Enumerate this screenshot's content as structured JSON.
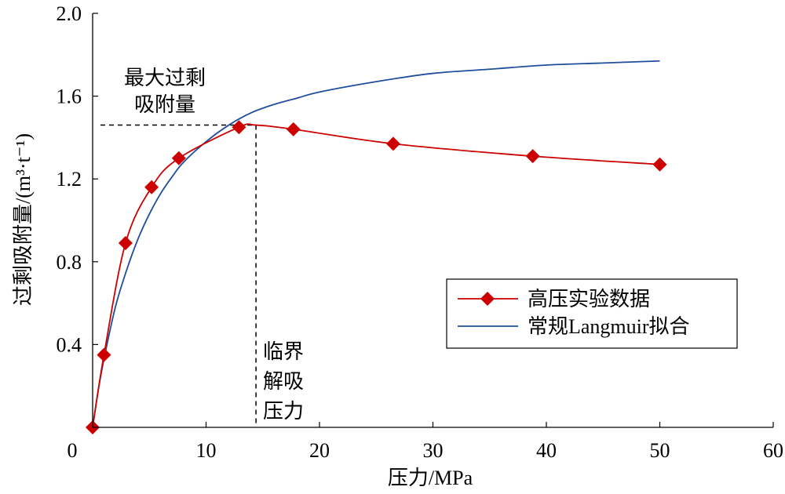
{
  "chart_data": {
    "type": "line",
    "xlabel": "压力/MPa",
    "ylabel": "过剩吸附量/(m³·t⁻¹)",
    "xlim": [
      0,
      60
    ],
    "ylim": [
      0,
      2.0
    ],
    "x_ticks": [
      0,
      10,
      20,
      30,
      40,
      50,
      60
    ],
    "y_ticks": [
      0.4,
      0.8,
      1.2,
      1.6,
      2.0
    ],
    "grid": false,
    "legend_position": "bottom-right",
    "series": [
      {
        "name": "高压实验数据",
        "color": "#cc0000",
        "marker": "diamond",
        "x": [
          0,
          1.0,
          2.9,
          5.2,
          7.6,
          12.9,
          17.7,
          26.5,
          38.8,
          50.0
        ],
        "y": [
          0,
          0.35,
          0.89,
          1.16,
          1.3,
          1.45,
          1.44,
          1.37,
          1.31,
          1.27
        ]
      },
      {
        "name": "常规Langmuir拟合",
        "color": "#1f4e9c",
        "marker": "none",
        "x": [
          0,
          0.5,
          1.0,
          2.0,
          3.0,
          4.0,
          5.0,
          6.0,
          7.0,
          8.0,
          10.0,
          12.0,
          14.0,
          16.0,
          18.0,
          20.0,
          25.0,
          30.0,
          35.0,
          40.0,
          45.0,
          50.0
        ],
        "y": [
          0,
          0.18,
          0.33,
          0.58,
          0.76,
          0.91,
          1.03,
          1.13,
          1.21,
          1.28,
          1.38,
          1.46,
          1.52,
          1.56,
          1.59,
          1.62,
          1.67,
          1.71,
          1.73,
          1.75,
          1.76,
          1.77
        ]
      }
    ],
    "annotations": {
      "max_label": [
        "最大过剩",
        "吸附量"
      ],
      "critical_label": [
        "临界",
        "解吸",
        "压力"
      ],
      "critical_point": {
        "x": 14.4,
        "y": 1.46
      }
    }
  }
}
